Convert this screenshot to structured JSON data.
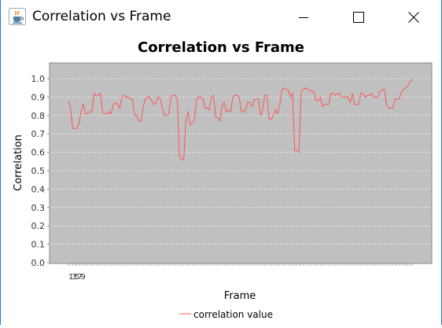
{
  "window": {
    "title": "Correlation vs Frame",
    "icon": "java-cup-icon",
    "controls": [
      "minimize-icon",
      "maximize-icon",
      "close-icon"
    ]
  },
  "chart_data": {
    "type": "line",
    "title": "Correlation vs Frame",
    "xlabel": "Frame",
    "ylabel": "Correlation",
    "ylim": [
      0.0,
      1.0
    ],
    "yticks": [
      "0.0",
      "0.1",
      "0.2",
      "0.3",
      "0.4",
      "0.5",
      "0.6",
      "0.7",
      "0.8",
      "0.9",
      "1.0"
    ],
    "grid": true,
    "plot_background": "#c0c0c0",
    "legend_position": "bottom",
    "series": [
      {
        "name": "correlation value",
        "color": "#ff5555",
        "values": [
          0.88,
          0.84,
          0.73,
          0.73,
          0.73,
          0.76,
          0.83,
          0.86,
          0.81,
          0.81,
          0.82,
          0.82,
          0.92,
          0.91,
          0.91,
          0.92,
          0.82,
          0.81,
          0.81,
          0.82,
          0.81,
          0.86,
          0.87,
          0.86,
          0.84,
          0.9,
          0.91,
          0.9,
          0.9,
          0.89,
          0.89,
          0.8,
          0.8,
          0.77,
          0.77,
          0.84,
          0.89,
          0.9,
          0.9,
          0.88,
          0.86,
          0.87,
          0.9,
          0.89,
          0.84,
          0.8,
          0.8,
          0.81,
          0.9,
          0.91,
          0.91,
          0.89,
          0.58,
          0.56,
          0.56,
          0.77,
          0.82,
          0.75,
          0.76,
          0.77,
          0.89,
          0.9,
          0.9,
          0.89,
          0.84,
          0.84,
          0.83,
          0.9,
          0.91,
          0.79,
          0.79,
          0.77,
          0.85,
          0.87,
          0.82,
          0.83,
          0.82,
          0.9,
          0.91,
          0.91,
          0.9,
          0.82,
          0.82,
          0.83,
          0.87,
          0.87,
          0.85,
          0.88,
          0.89,
          0.89,
          0.8,
          0.83,
          0.91,
          0.91,
          0.78,
          0.78,
          0.8,
          0.83,
          0.81,
          0.86,
          0.94,
          0.95,
          0.94,
          0.94,
          0.9,
          0.92,
          0.61,
          0.61,
          0.6,
          0.93,
          0.94,
          0.95,
          0.94,
          0.94,
          0.93,
          0.93,
          0.88,
          0.88,
          0.9,
          0.85,
          0.86,
          0.86,
          0.86,
          0.92,
          0.92,
          0.91,
          0.92,
          0.92,
          0.9,
          0.9,
          0.9,
          0.9,
          0.87,
          0.92,
          0.86,
          0.86,
          0.86,
          0.92,
          0.92,
          0.9,
          0.91,
          0.91,
          0.92,
          0.9,
          0.9,
          0.9,
          0.93,
          0.94,
          0.94,
          0.86,
          0.84,
          0.84,
          0.84,
          0.89,
          0.89,
          0.89,
          0.93,
          0.94,
          0.95,
          0.96,
          0.98,
          1.0
        ]
      }
    ],
    "x_tick_text": "13579"
  }
}
